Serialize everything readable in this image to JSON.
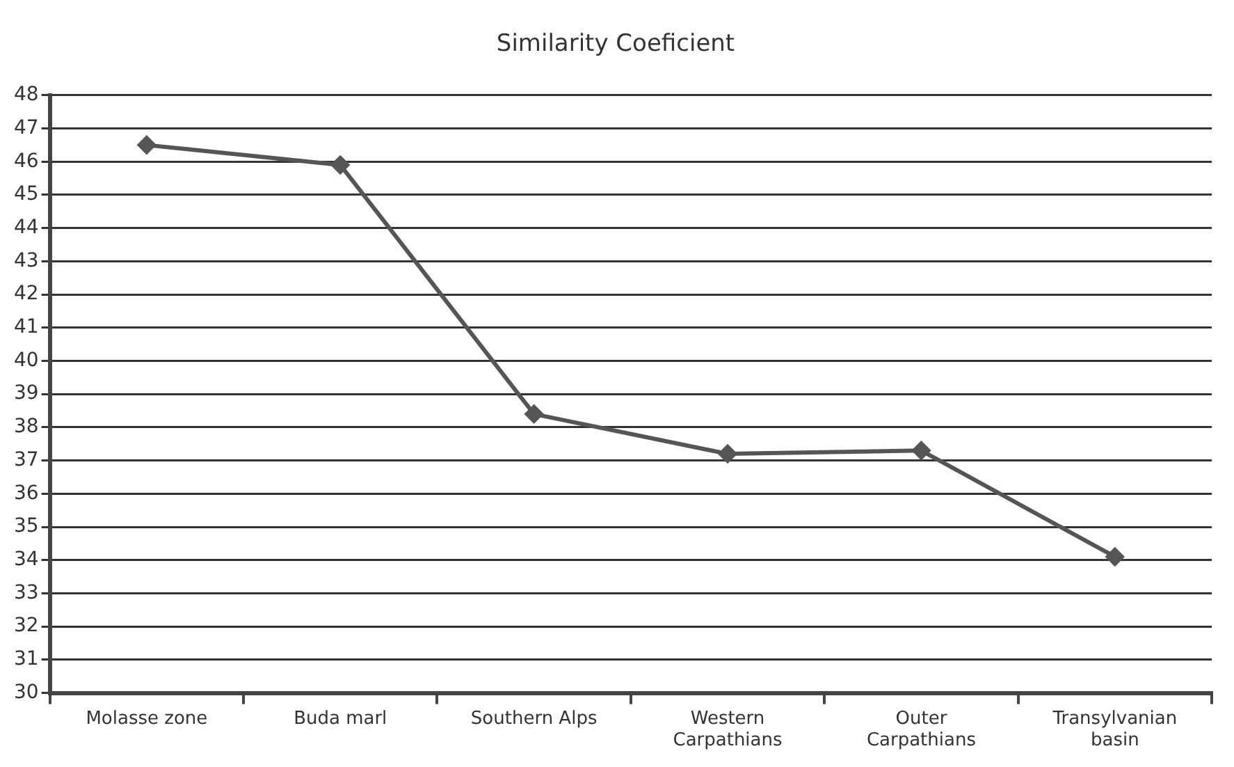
{
  "chart_data": {
    "type": "line",
    "title": "Similarity Coeficient",
    "categories": [
      "Molasse zone",
      "Buda marl",
      "Southern Alps",
      "Western Carpathians",
      "Outer Carpathians",
      "Transylvanian basin"
    ],
    "series": [
      {
        "color": "#555555",
        "values": [
          46.5,
          45.9,
          38.4,
          37.2,
          37.3,
          34.1
        ]
      }
    ],
    "ylim": [
      30,
      48
    ],
    "yticks": [
      30,
      31,
      32,
      33,
      34,
      35,
      36,
      37,
      38,
      39,
      40,
      41,
      42,
      43,
      44,
      45,
      46,
      47,
      48
    ],
    "grid": "y",
    "legend": false,
    "marker": "diamond",
    "line_style": "solid"
  }
}
